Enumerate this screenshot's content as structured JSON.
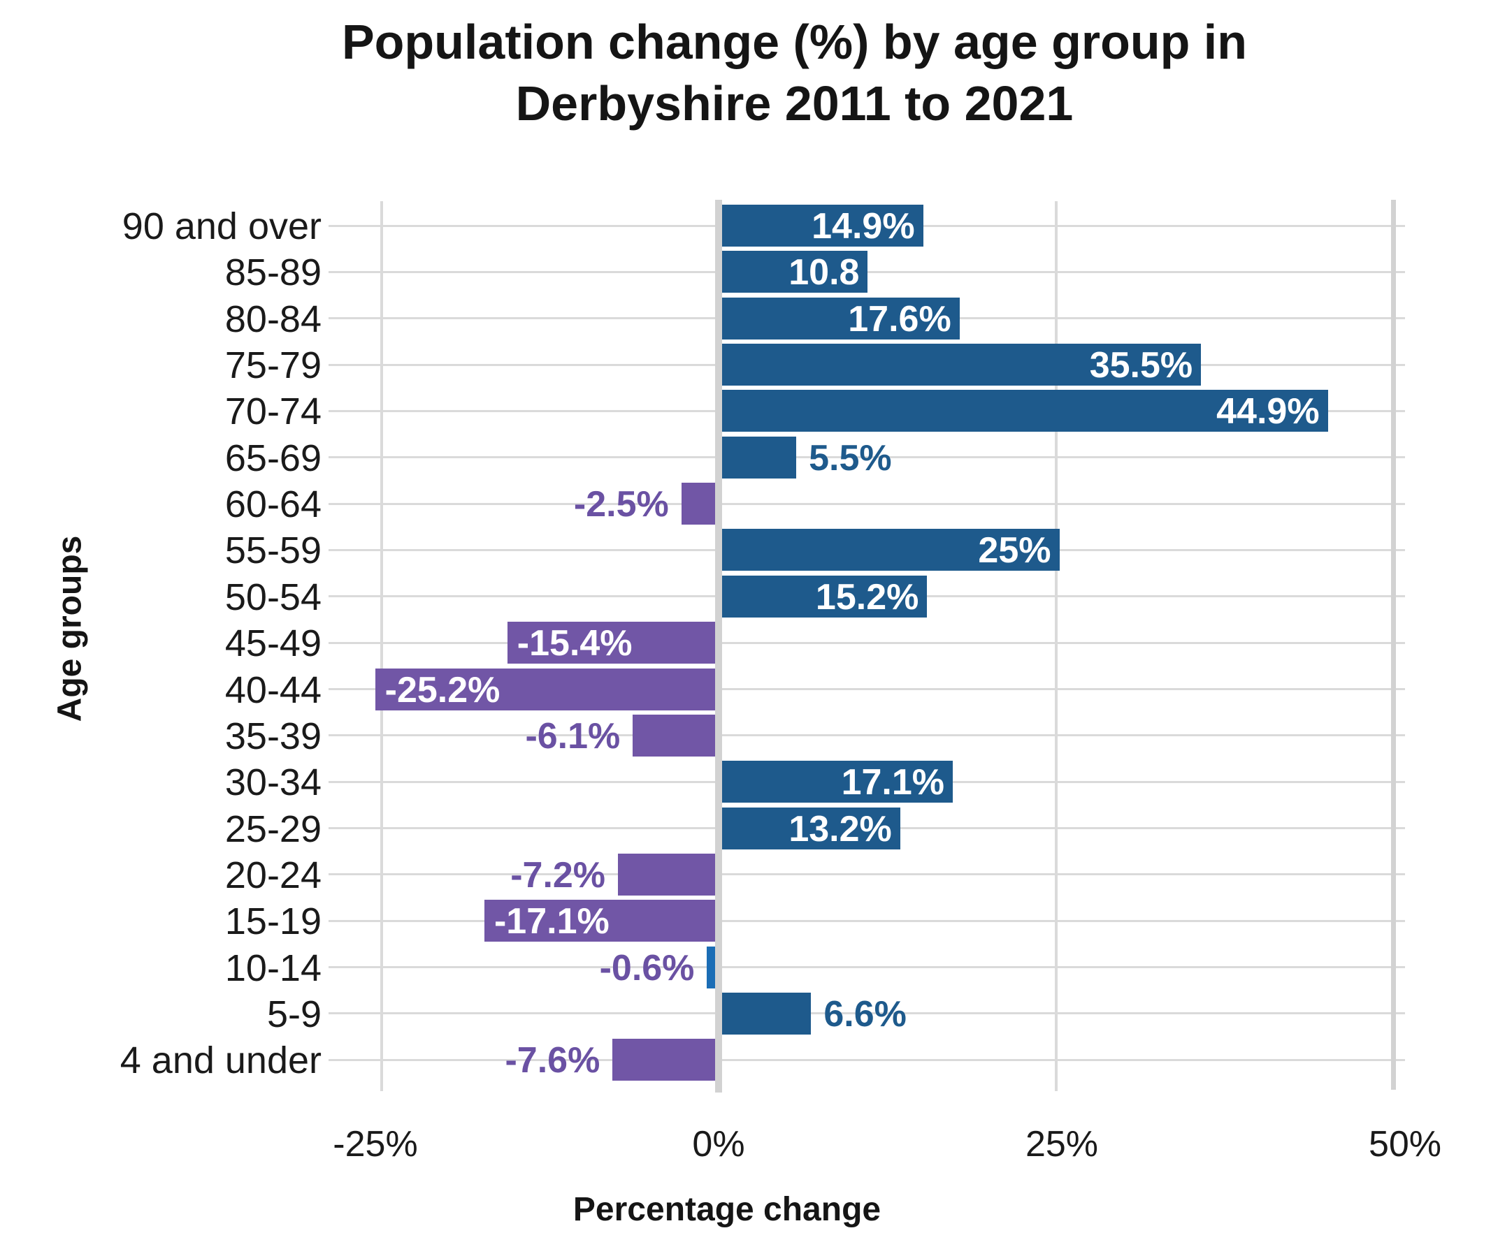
{
  "header": {
    "title_line1": "Population change (%) by age group in",
    "title_line2": "Derbyshire 2011 to 2021"
  },
  "chart_data": {
    "type": "bar",
    "orientation": "horizontal",
    "title": "Population change (%) by age group in Derbyshire 2011 to 2021",
    "xlabel": "Percentage change",
    "ylabel": "Age groups",
    "xlim": [
      -28.8,
      50
    ],
    "grid": true,
    "legend": false,
    "x_ticks": [
      -25,
      0,
      25,
      50
    ],
    "x_tick_labels": [
      "-25%",
      "0%",
      "25%",
      "50%"
    ],
    "categories": [
      "90 and over",
      "85-89",
      "80-84",
      "75-79",
      "70-74",
      "65-69",
      "60-64",
      "55-59",
      "50-54",
      "45-49",
      "40-44",
      "35-39",
      "30-34",
      "25-29",
      "20-24",
      "15-19",
      "10-14",
      "5-9",
      "4 and under"
    ],
    "values": [
      14.9,
      10.8,
      17.6,
      35.5,
      44.9,
      5.5,
      -2.5,
      25,
      15.2,
      -15.4,
      -25.2,
      -6.1,
      17.1,
      13.2,
      -7.2,
      -17.1,
      -0.6,
      6.6,
      -7.6
    ],
    "bar_labels": [
      "14.9%",
      "10.8",
      "17.6%",
      "35.5%",
      "44.9%",
      "5.5%",
      "-2.5%",
      "25%",
      "15.2%",
      "-15.4%",
      "-25.2%",
      "-6.1%",
      "17.1%",
      "13.2%",
      "-7.2%",
      "-17.1%",
      "-0.6%",
      "6.6%",
      "-7.6%"
    ],
    "label_placement": [
      "inside",
      "inside",
      "inside",
      "inside",
      "inside",
      "outside",
      "outside",
      "inside",
      "inside",
      "inside",
      "inside",
      "outside",
      "inside",
      "inside",
      "outside",
      "inside",
      "outside",
      "outside",
      "outside"
    ],
    "colors": {
      "positive_bar": "#1E5A8C",
      "negative_bar": "#7156A6",
      "inside_label": "#FFFFFF",
      "outside_label_positive": "#1E5A8C",
      "outside_label_negative": "#6A51A3",
      "gridline": "#DADADA",
      "axis_band": "#D2D2D2"
    },
    "bar_color_overrides": {
      "10-14": "#1B6DB5"
    }
  }
}
